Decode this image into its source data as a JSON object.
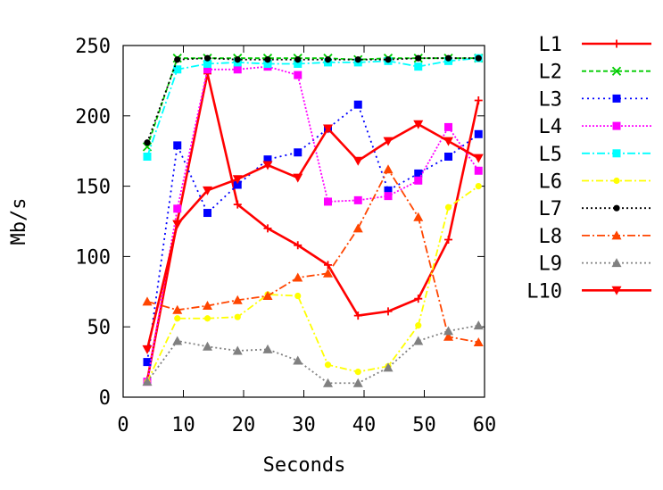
{
  "chart_data": {
    "type": "line",
    "xlabel": "Seconds",
    "ylabel": "Mb/s",
    "xlim": [
      0,
      60
    ],
    "ylim": [
      0,
      250
    ],
    "xticks": [
      0,
      10,
      20,
      30,
      40,
      50,
      60
    ],
    "yticks": [
      0,
      50,
      100,
      150,
      200,
      250
    ],
    "x": [
      4,
      9,
      14,
      19,
      24,
      29,
      34,
      39,
      44,
      49,
      54,
      59
    ],
    "grid": false,
    "legend_position": "right",
    "series": [
      {
        "name": "L1",
        "color": "#ff0000",
        "dash": "",
        "marker": "plus",
        "values": [
          12,
          125,
          230,
          137,
          120,
          108,
          94,
          58,
          61,
          70,
          112,
          211
        ]
      },
      {
        "name": "L2",
        "color": "#00cc00",
        "dash": "5,3",
        "marker": "x",
        "values": [
          178,
          241,
          241,
          241,
          241,
          241,
          241,
          240,
          241,
          241,
          241,
          241
        ]
      },
      {
        "name": "L3",
        "color": "#0000ff",
        "dash": "2,4",
        "marker": "square",
        "values": [
          25,
          179,
          131,
          151,
          169,
          174,
          191,
          208,
          147,
          159,
          171,
          187
        ]
      },
      {
        "name": "L4",
        "color": "#ff00ff",
        "dash": "2,2",
        "marker": "square",
        "values": [
          11,
          134,
          233,
          233,
          235,
          229,
          139,
          140,
          143,
          154,
          192,
          161
        ]
      },
      {
        "name": "L5",
        "color": "#00ffff",
        "dash": "9,3,2,3",
        "marker": "square",
        "values": [
          171,
          233,
          237,
          238,
          237,
          237,
          238,
          238,
          239,
          235,
          239,
          241
        ]
      },
      {
        "name": "L6",
        "color": "#ffff00",
        "dash": "8,3,2,3",
        "marker": "circle",
        "values": [
          11,
          56,
          56,
          57,
          73,
          72,
          23,
          18,
          22,
          51,
          135,
          150
        ]
      },
      {
        "name": "L7",
        "color": "#000000",
        "dash": "2,3",
        "marker": "circle",
        "values": [
          181,
          240,
          241,
          240,
          240,
          240,
          240,
          240,
          240,
          241,
          241,
          241
        ]
      },
      {
        "name": "L8",
        "color": "#ff4500",
        "dash": "9,3,2,3",
        "marker": "triangle",
        "values": [
          68,
          62,
          65,
          69,
          72,
          85,
          88,
          120,
          162,
          128,
          43,
          39
        ]
      },
      {
        "name": "L9",
        "color": "#808080",
        "dash": "2,3",
        "marker": "triangle",
        "values": [
          11,
          40,
          36,
          33,
          34,
          26,
          10,
          10,
          21,
          40,
          47,
          51
        ]
      },
      {
        "name": "L10",
        "color": "#ff0000",
        "dash": "",
        "marker": "triangle-down",
        "values": [
          34,
          123,
          147,
          155,
          165,
          156,
          191,
          168,
          182,
          194,
          182,
          170
        ]
      }
    ]
  }
}
